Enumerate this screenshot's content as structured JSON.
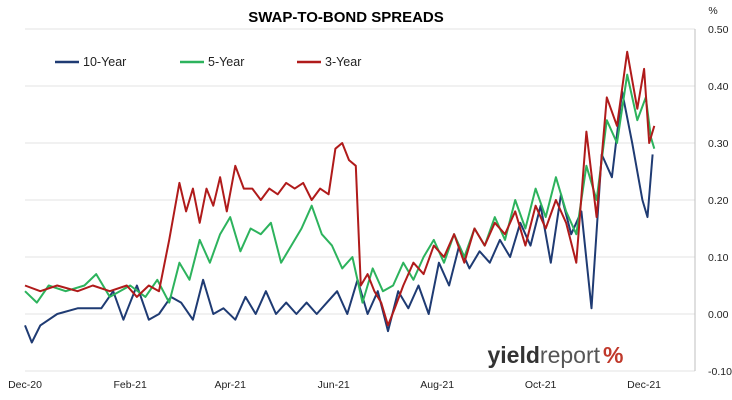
{
  "chart_data": {
    "type": "line",
    "title": "SWAP-TO-BOND SPREADS",
    "y_unit": "%",
    "ylim": [
      -0.1,
      0.5
    ],
    "y_ticks": [
      "-0.10",
      "0.00",
      "0.10",
      "0.20",
      "0.30",
      "0.40",
      "0.50"
    ],
    "x_ticks": [
      "Dec-20",
      "Feb-21",
      "Apr-21",
      "Jun-21",
      "Aug-21",
      "Oct-21",
      "Dec-21"
    ],
    "x_range": [
      "2020-12-01",
      "2021-12-31"
    ],
    "y_axis_position": "right",
    "grid": "horizontal",
    "legend_position": "top-left",
    "logo": {
      "part1": "yield",
      "part2": "report",
      "part3": "%"
    },
    "series": [
      {
        "name": "10-Year",
        "color": "#1f3b73",
        "values": [
          [
            "2020-12-01",
            -0.02
          ],
          [
            "2020-12-05",
            -0.05
          ],
          [
            "2020-12-10",
            -0.02
          ],
          [
            "2020-12-20",
            0.0
          ],
          [
            "2021-01-01",
            0.01
          ],
          [
            "2021-01-15",
            0.01
          ],
          [
            "2021-01-22",
            0.04
          ],
          [
            "2021-01-28",
            -0.01
          ],
          [
            "2021-02-05",
            0.05
          ],
          [
            "2021-02-12",
            -0.01
          ],
          [
            "2021-02-18",
            0.0
          ],
          [
            "2021-02-25",
            0.03
          ],
          [
            "2021-03-03",
            0.02
          ],
          [
            "2021-03-10",
            -0.01
          ],
          [
            "2021-03-16",
            0.06
          ],
          [
            "2021-03-22",
            0.0
          ],
          [
            "2021-03-28",
            0.01
          ],
          [
            "2021-04-04",
            -0.01
          ],
          [
            "2021-04-10",
            0.03
          ],
          [
            "2021-04-16",
            0.0
          ],
          [
            "2021-04-22",
            0.04
          ],
          [
            "2021-04-28",
            0.0
          ],
          [
            "2021-05-04",
            0.02
          ],
          [
            "2021-05-10",
            0.0
          ],
          [
            "2021-05-16",
            0.02
          ],
          [
            "2021-05-22",
            0.0
          ],
          [
            "2021-05-28",
            0.02
          ],
          [
            "2021-06-03",
            0.04
          ],
          [
            "2021-06-09",
            0.0
          ],
          [
            "2021-06-15",
            0.06
          ],
          [
            "2021-06-21",
            0.0
          ],
          [
            "2021-06-27",
            0.04
          ],
          [
            "2021-07-03",
            -0.03
          ],
          [
            "2021-07-09",
            0.04
          ],
          [
            "2021-07-15",
            0.01
          ],
          [
            "2021-07-21",
            0.05
          ],
          [
            "2021-07-27",
            0.0
          ],
          [
            "2021-08-02",
            0.09
          ],
          [
            "2021-08-08",
            0.05
          ],
          [
            "2021-08-14",
            0.12
          ],
          [
            "2021-08-20",
            0.08
          ],
          [
            "2021-08-26",
            0.11
          ],
          [
            "2021-09-01",
            0.09
          ],
          [
            "2021-09-07",
            0.13
          ],
          [
            "2021-09-13",
            0.1
          ],
          [
            "2021-09-19",
            0.16
          ],
          [
            "2021-09-25",
            0.12
          ],
          [
            "2021-10-01",
            0.19
          ],
          [
            "2021-10-07",
            0.09
          ],
          [
            "2021-10-13",
            0.21
          ],
          [
            "2021-10-19",
            0.14
          ],
          [
            "2021-10-25",
            0.18
          ],
          [
            "2021-10-31",
            0.01
          ],
          [
            "2021-11-06",
            0.28
          ],
          [
            "2021-11-12",
            0.24
          ],
          [
            "2021-11-18",
            0.39
          ],
          [
            "2021-11-24",
            0.3
          ],
          [
            "2021-11-30",
            0.2
          ],
          [
            "2021-12-03",
            0.17
          ],
          [
            "2021-12-06",
            0.28
          ]
        ]
      },
      {
        "name": "5-Year",
        "color": "#2db35d",
        "values": [
          [
            "2020-12-01",
            0.04
          ],
          [
            "2020-12-08",
            0.02
          ],
          [
            "2020-12-15",
            0.05
          ],
          [
            "2020-12-25",
            0.04
          ],
          [
            "2021-01-05",
            0.05
          ],
          [
            "2021-01-12",
            0.07
          ],
          [
            "2021-01-20",
            0.03
          ],
          [
            "2021-02-01",
            0.05
          ],
          [
            "2021-02-10",
            0.03
          ],
          [
            "2021-02-17",
            0.06
          ],
          [
            "2021-02-24",
            0.02
          ],
          [
            "2021-03-02",
            0.09
          ],
          [
            "2021-03-08",
            0.06
          ],
          [
            "2021-03-14",
            0.13
          ],
          [
            "2021-03-20",
            0.09
          ],
          [
            "2021-03-26",
            0.14
          ],
          [
            "2021-04-01",
            0.17
          ],
          [
            "2021-04-07",
            0.11
          ],
          [
            "2021-04-13",
            0.15
          ],
          [
            "2021-04-19",
            0.14
          ],
          [
            "2021-04-25",
            0.16
          ],
          [
            "2021-05-01",
            0.09
          ],
          [
            "2021-05-07",
            0.12
          ],
          [
            "2021-05-13",
            0.15
          ],
          [
            "2021-05-19",
            0.19
          ],
          [
            "2021-05-25",
            0.14
          ],
          [
            "2021-05-31",
            0.12
          ],
          [
            "2021-06-06",
            0.08
          ],
          [
            "2021-06-12",
            0.1
          ],
          [
            "2021-06-18",
            0.02
          ],
          [
            "2021-06-24",
            0.08
          ],
          [
            "2021-06-30",
            0.04
          ],
          [
            "2021-07-06",
            0.05
          ],
          [
            "2021-07-12",
            0.09
          ],
          [
            "2021-07-18",
            0.06
          ],
          [
            "2021-07-24",
            0.1
          ],
          [
            "2021-07-30",
            0.13
          ],
          [
            "2021-08-05",
            0.09
          ],
          [
            "2021-08-11",
            0.14
          ],
          [
            "2021-08-17",
            0.1
          ],
          [
            "2021-08-23",
            0.15
          ],
          [
            "2021-08-29",
            0.12
          ],
          [
            "2021-09-04",
            0.17
          ],
          [
            "2021-09-10",
            0.13
          ],
          [
            "2021-09-16",
            0.2
          ],
          [
            "2021-09-22",
            0.15
          ],
          [
            "2021-09-28",
            0.22
          ],
          [
            "2021-10-04",
            0.17
          ],
          [
            "2021-10-10",
            0.24
          ],
          [
            "2021-10-16",
            0.18
          ],
          [
            "2021-10-22",
            0.14
          ],
          [
            "2021-10-28",
            0.26
          ],
          [
            "2021-11-03",
            0.2
          ],
          [
            "2021-11-09",
            0.34
          ],
          [
            "2021-11-15",
            0.3
          ],
          [
            "2021-11-21",
            0.42
          ],
          [
            "2021-11-27",
            0.34
          ],
          [
            "2021-12-02",
            0.38
          ],
          [
            "2021-12-05",
            0.31
          ],
          [
            "2021-12-07",
            0.29
          ]
        ]
      },
      {
        "name": "3-Year",
        "color": "#b01b1b",
        "values": [
          [
            "2020-12-01",
            0.05
          ],
          [
            "2020-12-10",
            0.04
          ],
          [
            "2020-12-20",
            0.05
          ],
          [
            "2021-01-01",
            0.04
          ],
          [
            "2021-01-10",
            0.05
          ],
          [
            "2021-01-20",
            0.04
          ],
          [
            "2021-01-30",
            0.05
          ],
          [
            "2021-02-05",
            0.03
          ],
          [
            "2021-02-12",
            0.05
          ],
          [
            "2021-02-18",
            0.04
          ],
          [
            "2021-02-24",
            0.13
          ],
          [
            "2021-03-02",
            0.23
          ],
          [
            "2021-03-06",
            0.18
          ],
          [
            "2021-03-10",
            0.22
          ],
          [
            "2021-03-14",
            0.16
          ],
          [
            "2021-03-18",
            0.22
          ],
          [
            "2021-03-22",
            0.19
          ],
          [
            "2021-03-26",
            0.24
          ],
          [
            "2021-03-30",
            0.18
          ],
          [
            "2021-04-04",
            0.26
          ],
          [
            "2021-04-09",
            0.22
          ],
          [
            "2021-04-14",
            0.22
          ],
          [
            "2021-04-19",
            0.2
          ],
          [
            "2021-04-24",
            0.22
          ],
          [
            "2021-04-29",
            0.21
          ],
          [
            "2021-05-04",
            0.23
          ],
          [
            "2021-05-09",
            0.22
          ],
          [
            "2021-05-14",
            0.23
          ],
          [
            "2021-05-19",
            0.2
          ],
          [
            "2021-05-24",
            0.22
          ],
          [
            "2021-05-29",
            0.21
          ],
          [
            "2021-06-02",
            0.29
          ],
          [
            "2021-06-06",
            0.3
          ],
          [
            "2021-06-10",
            0.27
          ],
          [
            "2021-06-14",
            0.26
          ],
          [
            "2021-06-17",
            0.05
          ],
          [
            "2021-06-21",
            0.07
          ],
          [
            "2021-06-25",
            0.04
          ],
          [
            "2021-06-29",
            0.02
          ],
          [
            "2021-07-03",
            -0.02
          ],
          [
            "2021-07-07",
            0.01
          ],
          [
            "2021-07-12",
            0.05
          ],
          [
            "2021-07-18",
            0.09
          ],
          [
            "2021-07-24",
            0.07
          ],
          [
            "2021-07-30",
            0.12
          ],
          [
            "2021-08-05",
            0.1
          ],
          [
            "2021-08-11",
            0.14
          ],
          [
            "2021-08-17",
            0.09
          ],
          [
            "2021-08-23",
            0.15
          ],
          [
            "2021-08-29",
            0.12
          ],
          [
            "2021-09-04",
            0.16
          ],
          [
            "2021-09-10",
            0.14
          ],
          [
            "2021-09-16",
            0.18
          ],
          [
            "2021-09-22",
            0.12
          ],
          [
            "2021-09-28",
            0.19
          ],
          [
            "2021-10-04",
            0.15
          ],
          [
            "2021-10-10",
            0.2
          ],
          [
            "2021-10-16",
            0.16
          ],
          [
            "2021-10-22",
            0.09
          ],
          [
            "2021-10-28",
            0.32
          ],
          [
            "2021-11-03",
            0.17
          ],
          [
            "2021-11-09",
            0.38
          ],
          [
            "2021-11-15",
            0.33
          ],
          [
            "2021-11-21",
            0.46
          ],
          [
            "2021-11-27",
            0.36
          ],
          [
            "2021-12-01",
            0.43
          ],
          [
            "2021-12-04",
            0.3
          ],
          [
            "2021-12-07",
            0.33
          ]
        ]
      }
    ]
  }
}
